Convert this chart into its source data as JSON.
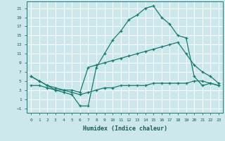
{
  "title": "",
  "xlabel": "Humidex (Indice chaleur)",
  "bg_color": "#cce8ec",
  "grid_color": "#ffffff",
  "line_color": "#1a7a6e",
  "xlim": [
    -0.5,
    23.5
  ],
  "ylim": [
    -2.0,
    22.5
  ],
  "yticks": [
    -1,
    1,
    3,
    5,
    7,
    9,
    11,
    13,
    15,
    17,
    19,
    21
  ],
  "xticks": [
    0,
    1,
    2,
    3,
    4,
    5,
    6,
    7,
    8,
    9,
    10,
    11,
    12,
    13,
    14,
    15,
    16,
    17,
    18,
    19,
    20,
    21,
    22,
    23
  ],
  "line1_x": [
    0,
    1,
    2,
    3,
    4,
    5,
    6,
    7,
    8,
    9,
    10,
    11,
    12,
    13,
    14,
    15,
    16,
    17,
    18,
    19,
    20,
    21,
    22,
    23
  ],
  "line1_y": [
    6,
    5,
    4,
    3,
    2.5,
    2,
    -0.5,
    -0.5,
    8,
    11,
    14,
    16,
    18.5,
    19.5,
    21,
    21.5,
    19,
    17.5,
    15,
    14.5,
    6,
    4,
    4.5,
    4
  ],
  "line2_x": [
    0,
    1,
    2,
    3,
    4,
    5,
    6,
    7,
    8,
    9,
    10,
    11,
    12,
    13,
    14,
    15,
    16,
    17,
    18,
    19,
    20,
    21,
    22,
    23
  ],
  "line2_y": [
    6,
    5,
    4,
    3.5,
    3,
    3,
    2.5,
    8,
    8.5,
    9,
    9.5,
    10,
    10.5,
    11,
    11.5,
    12,
    12.5,
    13,
    13.5,
    11,
    8.5,
    7,
    6,
    4.5
  ],
  "line3_x": [
    0,
    1,
    2,
    3,
    4,
    5,
    6,
    7,
    8,
    9,
    10,
    11,
    12,
    13,
    14,
    15,
    16,
    17,
    18,
    19,
    20,
    21,
    22,
    23
  ],
  "line3_y": [
    4,
    4,
    3.5,
    3,
    3,
    2.5,
    2,
    2.5,
    3,
    3.5,
    3.5,
    4,
    4,
    4,
    4,
    4.5,
    4.5,
    4.5,
    4.5,
    4.5,
    5,
    5,
    4.5,
    4
  ],
  "tick_fontsize": 4.5,
  "xlabel_fontsize": 6,
  "tick_color": "#1a5c50",
  "xlabel_color": "#1a5c50"
}
